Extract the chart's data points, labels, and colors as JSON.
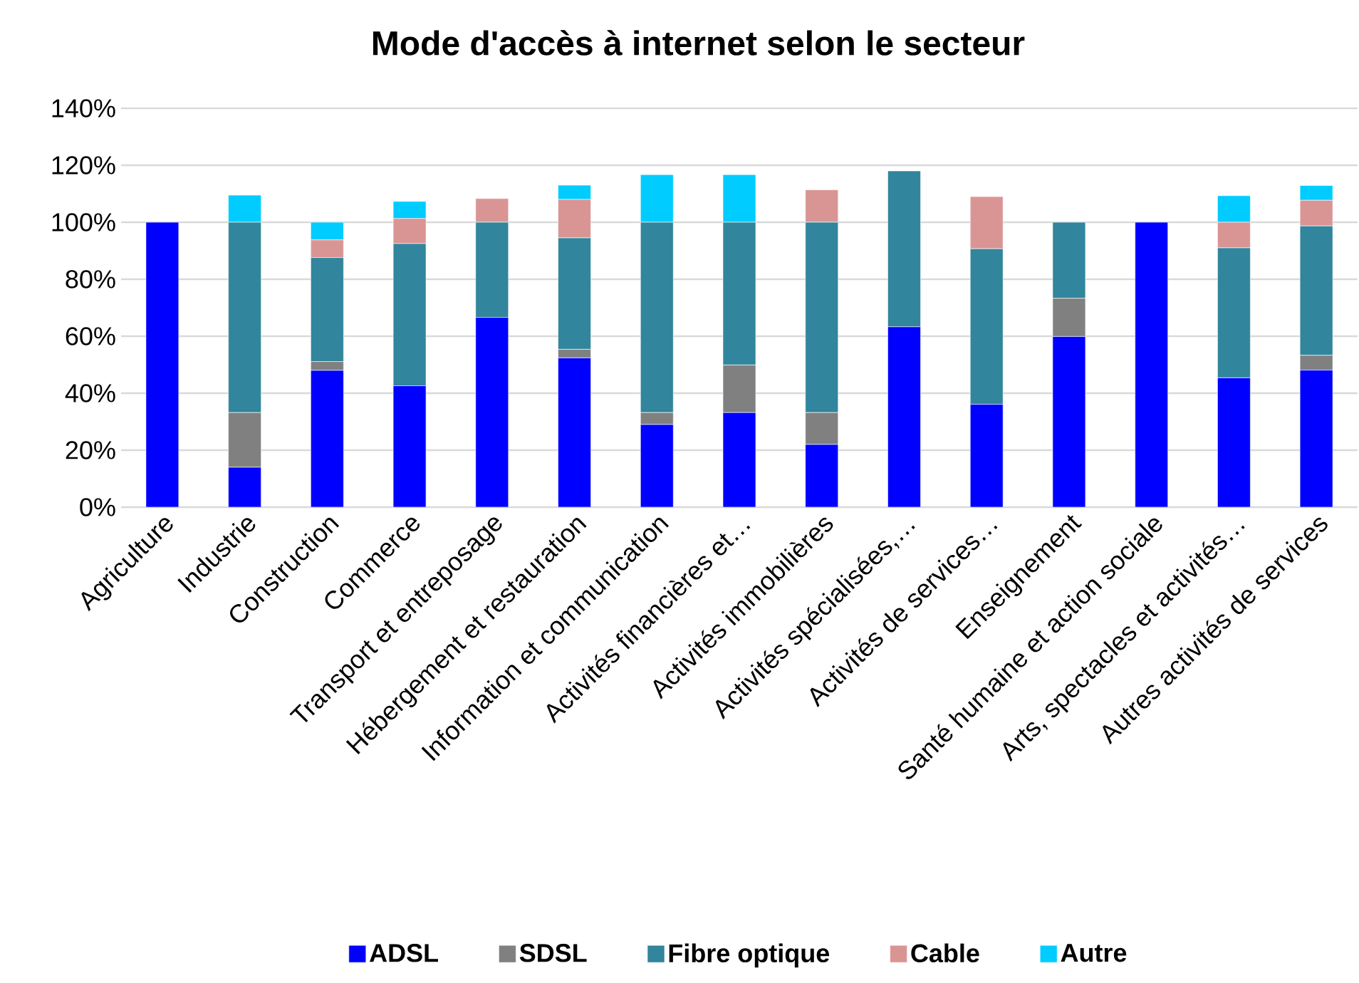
{
  "chart_data": {
    "type": "bar",
    "title": "Mode d'accès à internet selon le secteur",
    "stacked": true,
    "grid": "y",
    "legend": "bottom",
    "categories": [
      "Agriculture",
      "Industrie",
      "Construction",
      "Commerce",
      "Transport et entreposage",
      "Hébergement et restauration",
      "Information et communication",
      "Activités financières et…",
      "Activités immobilières",
      "Activités spécialisées,…",
      "Activités de services…",
      "Enseignement",
      "Santé humaine et action sociale",
      "Arts, spectacles et activités…",
      "Autres activités de services"
    ],
    "ylim": [
      0,
      140
    ],
    "yticks": [
      {
        "value": 0,
        "label": "0%"
      },
      {
        "value": 20,
        "label": "20%"
      },
      {
        "value": 40,
        "label": "40%"
      },
      {
        "value": 60,
        "label": "60%"
      },
      {
        "value": 80,
        "label": "80%"
      },
      {
        "value": 100,
        "label": "100%"
      },
      {
        "value": 120,
        "label": "120%"
      },
      {
        "value": 140,
        "label": "140%"
      }
    ],
    "series": [
      {
        "name": "ADSL",
        "color": "#0000ff",
        "values": [
          100,
          14,
          48,
          42.6,
          66.6,
          52.4,
          29,
          33.2,
          22,
          63.3,
          36.1,
          59.9,
          100,
          45.4,
          48.1
        ]
      },
      {
        "name": "SDSL",
        "color": "#808080",
        "values": [
          0,
          19.2,
          3.1,
          0,
          0,
          3,
          4.2,
          16.7,
          11.2,
          0,
          0,
          13.4,
          0,
          0,
          5.2
        ]
      },
      {
        "name": "Fibre optique",
        "color": "#31859c",
        "values": [
          0,
          66.8,
          36.5,
          49.9,
          33.4,
          39.1,
          66.8,
          50.1,
          66.8,
          54.7,
          54.6,
          26.7,
          0,
          45.6,
          45.4
        ]
      },
      {
        "name": "Cable",
        "color": "#d99594",
        "values": [
          0,
          0,
          6.2,
          8.8,
          8.3,
          13.5,
          0,
          0,
          11.4,
          0,
          18.3,
          0,
          0,
          9,
          9
        ]
      },
      {
        "name": "Autre",
        "color": "#00ccff",
        "values": [
          0,
          9.5,
          6.2,
          6,
          0,
          5,
          16.7,
          16.7,
          0,
          0,
          0,
          0,
          0,
          9.3,
          5.2
        ]
      }
    ]
  }
}
